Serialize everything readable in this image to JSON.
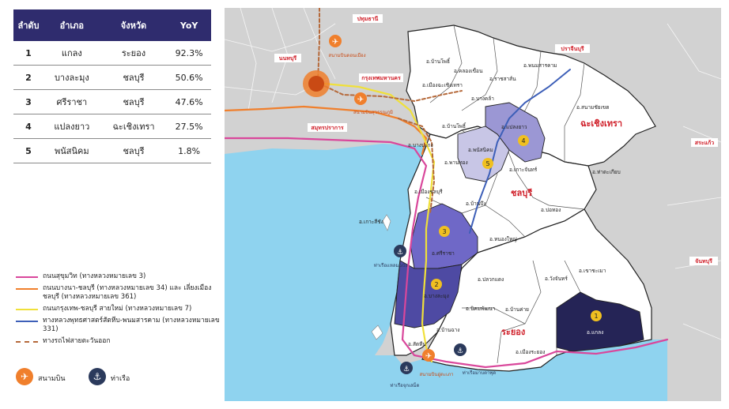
{
  "table": {
    "headers": [
      "ลำดับ",
      "อำเภอ",
      "จังหวัด",
      "YoY"
    ],
    "rows": [
      {
        "rank": "1",
        "district": "แกลง",
        "province": "ระยอง",
        "yoy": "92.3%"
      },
      {
        "rank": "2",
        "district": "บางละมุง",
        "province": "ชลบุรี",
        "yoy": "50.6%"
      },
      {
        "rank": "3",
        "district": "ศรีราชา",
        "province": "ชลบุรี",
        "yoy": "47.6%"
      },
      {
        "rank": "4",
        "district": "แปลงยาว",
        "province": "ฉะเชิงเทรา",
        "yoy": "27.5%"
      },
      {
        "rank": "5",
        "district": "พนัสนิคม",
        "province": "ชลบุรี",
        "yoy": "1.8%"
      }
    ]
  },
  "legend": {
    "items": [
      {
        "label": "ถนนสุขุมวิท (ทางหลวงหมายเลข 3)",
        "color": "#d9479b",
        "style": "solid"
      },
      {
        "label": "ถนนบางนา-ชลบุรี (ทางหลวงหมายเลข 34) และ เลี่ยงเมืองชลบุรี (ทางหลวงหมายเลข 361)",
        "color": "#f07f2c",
        "style": "solid"
      },
      {
        "label": "ถนนกรุงเทพ-ชลบุรี สายใหม่ (ทางหลวงหมายเลข 7)",
        "color": "#f0e03a",
        "style": "solid"
      },
      {
        "label": "ทางหลวงพุทธศาสตร์สัตหีบ-พนมสารคาม (ทางหลวงหมายเลข 331)",
        "color": "#3d5fb8",
        "style": "solid"
      },
      {
        "label": "ทางรถไฟสายตะวันออก",
        "color": "#b5693a",
        "style": "dashed"
      }
    ],
    "airport_label": "สนามบิน",
    "port_label": "ท่าเรือ",
    "airport_icon": "airplane-icon",
    "port_icon": "anchor-icon"
  },
  "map": {
    "provinces": {
      "chachoengsao": "ฉะเชิงเทรา",
      "chonburi": "ชลบุรี",
      "rayong": "ระยอง"
    },
    "outside_labels": {
      "pathum_thani": "ปทุมธานี",
      "nonthaburi": "นนทบุรี",
      "prachinburi": "ปราจีนบุรี",
      "bangkok": "กรุงเทพมหานคร",
      "samut_prakan": "สมุทรปราการ",
      "sa_kaeo": "สระแก้ว",
      "chanthaburi": "จันทบุรี"
    },
    "districts": {
      "ban_pho": "อ.บ้านโพธิ์",
      "khlong_khuean": "อ.คลองเขื่อน",
      "ratchasan": "อ.ราชสาส์น",
      "phanom_sarakham": "อ.พนมสารคาม",
      "mueang_chachoengsao": "อ.เมืองฉะเชิงเทรา",
      "bang_khla": "อ.บางคล้า",
      "sanam_chai_khet": "อ.สนามชัยเขต",
      "plaeng_yao": "อ.แปลงยาว",
      "ban_bueng_n": "อ.บ้านโพธิ์",
      "bang_pakong": "อ.บางปะกง",
      "phanat_nikhom": "อ.พนัสนิคม",
      "phan_thong": "อ.พานทอง",
      "ko_chan": "อ.เกาะจันทร์",
      "tha_takiap": "อ.ท่าตะเกียบ",
      "mueang_chonburi": "อ.เมืองชลบุรี",
      "ban_bueng": "อ.บ้านบึง",
      "bo_thong": "อ.บ่อทอง",
      "ko_si_chang": "อ.เกาะสีชัง",
      "nong_yai": "อ.หนองใหญ่",
      "si_racha": "อ.ศรีราชา",
      "wang_chan": "อ.วังจันทร์",
      "khao_chamao": "อ.เขาชะเมา",
      "pluak_daeng": "อ.ปลวกแดง",
      "bang_lamung": "อ.บางละมุง",
      "nikhom_phatthana": "อ.นิคมพัฒนา",
      "ban_khai": "อ.บ้านค่าย",
      "sattahip": "อ.สัตหีบ",
      "ban_chang": "อ.บ้านฉาง",
      "mueang_rayong": "อ.เมืองระยอง",
      "klaeng": "อ.แกลง"
    },
    "facility_labels": {
      "suvarnabhumi_top": "สนามบินดอนเมือง",
      "suvarnabhumi": "สนามบินสุวรรณภูมิ",
      "laem_chabang": "ท่าเรือแหลมฉบัง",
      "utapao": "สนามบินอู่ตะเภา",
      "sattahip_port": "ท่าเรือจุกเสม็ด",
      "map_ta_phut": "ท่าเรือมาบตาพุด"
    },
    "rank_markers": [
      "1",
      "2",
      "3",
      "4",
      "5"
    ],
    "colors": {
      "sea": "#8fd3ef",
      "land_outside": "#d2d2d2",
      "land_inside": "#ffffff",
      "rank1": "#252456",
      "rank2": "#4e4aa3",
      "rank3": "#6f68c7",
      "rank4": "#9b97d4",
      "rank5": "#c8c6e6",
      "marker": "#f0c020",
      "bangkok_dot": "#e0581b"
    }
  }
}
